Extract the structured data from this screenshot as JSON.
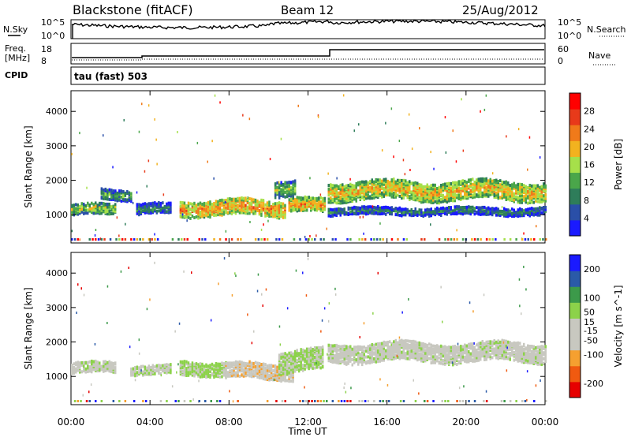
{
  "header": {
    "station": "Blackstone (fitACF)",
    "beam": "Beam 12",
    "date": "25/Aug/2012"
  },
  "top_panels": {
    "noise": {
      "left_label": "N.Sky",
      "left_top_tick": "10^5",
      "left_bottom_tick": "10^0",
      "right_top_tick": "10^5",
      "right_bottom_tick": "10^0",
      "right_label": "N.Search"
    },
    "freq": {
      "left_label_top": "Freq.",
      "left_label_bottom": "[MHz]",
      "left_top_tick": "18",
      "left_bottom_tick": "8",
      "right_top_tick": "60",
      "right_bottom_tick": "0",
      "right_label": "Nave"
    },
    "cpid": {
      "label": "CPID",
      "value": "tau (fast) 503"
    }
  },
  "colors": {
    "power_scale": [
      "#1a1aff",
      "#2a4fa8",
      "#2e7d5a",
      "#4aa64a",
      "#a6e04a",
      "#f2b21f",
      "#f07a1a",
      "#e83a1a",
      "#ff0000"
    ],
    "velocity_scale": [
      "#e60000",
      "#f05a10",
      "#f5a030",
      "#c8c8c0",
      "#c8c8c0",
      "#8cd24a",
      "#3c9a4a",
      "#2a5aa8",
      "#1a1aff"
    ]
  },
  "chart_data": [
    {
      "type": "heatmap",
      "title": "",
      "xlabel": "Time UT",
      "ylabel": "Slant Range [km]",
      "xlim": [
        "00:00",
        "24:00"
      ],
      "ylim": [
        180,
        4600
      ],
      "x_ticks": [
        "00:00",
        "04:00",
        "08:00",
        "12:00",
        "16:00",
        "20:00",
        "00:00"
      ],
      "y_ticks": [
        1000,
        2000,
        3000,
        4000
      ],
      "colorbar": {
        "label": "Power [dB]",
        "ticks": [
          4,
          8,
          12,
          16,
          20,
          24,
          28
        ],
        "range": [
          0,
          32
        ]
      },
      "echo_bands": [
        {
          "start_hour": 0.0,
          "end_hour": 2.2,
          "center_km": 1200,
          "spread_km": 150,
          "level": 16
        },
        {
          "start_hour": 1.5,
          "end_hour": 3.0,
          "center_km": 1650,
          "spread_km": 150,
          "level": 12
        },
        {
          "start_hour": 3.3,
          "end_hour": 5.0,
          "center_km": 1200,
          "spread_km": 140,
          "level": 10
        },
        {
          "start_hour": 5.5,
          "end_hour": 10.8,
          "center_km": 1250,
          "spread_km": 220,
          "level": 22
        },
        {
          "start_hour": 10.3,
          "end_hour": 11.3,
          "center_km": 1850,
          "spread_km": 220,
          "level": 14
        },
        {
          "start_hour": 11.0,
          "end_hour": 12.8,
          "center_km": 1300,
          "spread_km": 180,
          "level": 22
        },
        {
          "start_hour": 13.0,
          "end_hour": 24.0,
          "center_km": 1750,
          "spread_km": 260,
          "level": 20
        },
        {
          "start_hour": 13.0,
          "end_hour": 24.0,
          "center_km": 1150,
          "spread_km": 100,
          "level": 10
        }
      ]
    },
    {
      "type": "heatmap",
      "title": "",
      "xlabel": "Time UT",
      "ylabel": "Slant Range [km]",
      "xlim": [
        "00:00",
        "24:00"
      ],
      "ylim": [
        180,
        4600
      ],
      "x_ticks": [
        "00:00",
        "04:00",
        "08:00",
        "12:00",
        "16:00",
        "20:00",
        "00:00"
      ],
      "y_ticks": [
        1000,
        2000,
        3000,
        4000
      ],
      "colorbar": {
        "label": "Velocity [m s^-1]",
        "ticks": [
          -200,
          -100,
          -50,
          -15,
          15,
          50,
          100,
          200
        ],
        "range": [
          -250,
          250
        ]
      },
      "echo_bands": [
        {
          "start_hour": 0.0,
          "end_hour": 2.2,
          "center_km": 1300,
          "spread_km": 150,
          "level": 0
        },
        {
          "start_hour": 3.0,
          "end_hour": 5.0,
          "center_km": 1250,
          "spread_km": 130,
          "level": 20
        },
        {
          "start_hour": 5.5,
          "end_hour": 7.8,
          "center_km": 1300,
          "spread_km": 200,
          "level": 40
        },
        {
          "start_hour": 7.8,
          "end_hour": 11.2,
          "center_km": 1200,
          "spread_km": 220,
          "level": -60
        },
        {
          "start_hour": 10.5,
          "end_hour": 12.7,
          "center_km": 1500,
          "spread_km": 300,
          "level": 30
        },
        {
          "start_hour": 13.0,
          "end_hour": 24.0,
          "center_km": 1750,
          "spread_km": 260,
          "level": 0
        }
      ]
    }
  ]
}
